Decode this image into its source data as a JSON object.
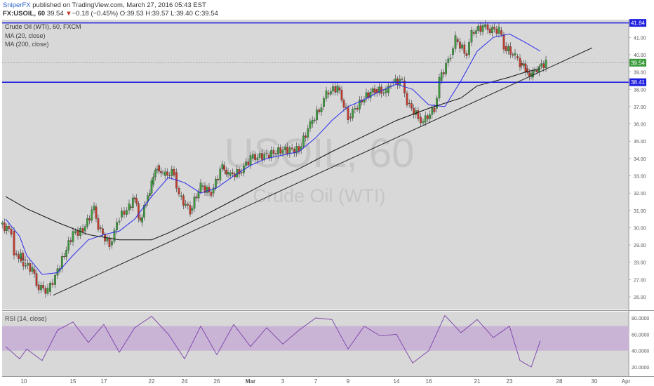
{
  "header": {
    "author": "SniperFX",
    "published_text": "published on TradingView.com, March 27, 2016 05:43 EST",
    "symbol": "FX:USOIL, 60",
    "last": "39.54",
    "change_arrow": "▼",
    "change": "−0.18 (−0.45%)",
    "ohlc": "O:39.53 H:39.57 L:39.40 C:39.54"
  },
  "main_panel": {
    "title": "Crude Oil (WTI), 60, FXCM",
    "legend": [
      "MA (20, close)",
      "MA (200, close)"
    ],
    "watermark_symbol": "USOIL, 60",
    "watermark_name": "Crude Oil (WTI)",
    "price_labels": [
      "41.00",
      "40.00",
      "39.00",
      "38.00",
      "37.00",
      "36.00",
      "35.00",
      "34.00",
      "33.00",
      "32.00",
      "31.00",
      "30.00",
      "29.00",
      "28.00",
      "27.00",
      "26.00"
    ],
    "resistance_label": "41.84",
    "current_label": "39.54",
    "support_label": "38.41"
  },
  "rsi_panel": {
    "title": "RSI (14, close)",
    "labels": [
      "80.0000",
      "60.0000",
      "40.0000",
      "20.0000"
    ]
  },
  "time_axis": [
    "10",
    "15",
    "17",
    "22",
    "24",
    "26",
    "Mar",
    "3",
    "7",
    "9",
    "14",
    "16",
    "21",
    "23",
    "28",
    "30",
    "Apr"
  ],
  "chart_data": {
    "type": "line",
    "symbol": "FX:USOIL",
    "interval": "60",
    "price_axis": {
      "ylim": [
        25.6,
        42.3
      ]
    },
    "rsi_axis": {
      "ylim": [
        14,
        86
      ]
    },
    "horizontal_lines": [
      41.84,
      38.41
    ],
    "last_price": 39.54,
    "trendline": [
      {
        "x": "Feb 11",
        "y": 26.1
      },
      {
        "x": "Mar 29",
        "y": 40.4
      }
    ],
    "price_path": [
      {
        "x": "Feb 8",
        "y": 30.2
      },
      {
        "x": "Feb 8",
        "y": 29.8
      },
      {
        "x": "Feb 9",
        "y": 28.5
      },
      {
        "x": "Feb 9",
        "y": 28.2
      },
      {
        "x": "Feb 10",
        "y": 28.0
      },
      {
        "x": "Feb 10",
        "y": 27.6
      },
      {
        "x": "Feb 11",
        "y": 26.7
      },
      {
        "x": "Feb 11",
        "y": 26.3
      },
      {
        "x": "Feb 12",
        "y": 27.5
      },
      {
        "x": "Feb 15",
        "y": 29.7
      },
      {
        "x": "Feb 16",
        "y": 29.8
      },
      {
        "x": "Feb 16",
        "y": 31.2
      },
      {
        "x": "Feb 17",
        "y": 30.0
      },
      {
        "x": "Feb 17",
        "y": 29.0
      },
      {
        "x": "Feb 18",
        "y": 30.6
      },
      {
        "x": "Feb 19",
        "y": 31.2
      },
      {
        "x": "Feb 19",
        "y": 31.7
      },
      {
        "x": "Feb 19",
        "y": 30.3
      },
      {
        "x": "Feb 22",
        "y": 31.5
      },
      {
        "x": "Feb 22",
        "y": 32.5
      },
      {
        "x": "Feb 22",
        "y": 33.6
      },
      {
        "x": "Feb 23",
        "y": 33.0
      },
      {
        "x": "Feb 23",
        "y": 33.2
      },
      {
        "x": "Feb 24",
        "y": 31.8
      },
      {
        "x": "Feb 24",
        "y": 31.0
      },
      {
        "x": "Feb 25",
        "y": 32.4
      },
      {
        "x": "Feb 26",
        "y": 32.0
      },
      {
        "x": "Feb 26",
        "y": 33.6
      },
      {
        "x": "Feb 29",
        "y": 33.0
      },
      {
        "x": "Feb 29",
        "y": 33.2
      },
      {
        "x": "Mar 1",
        "y": 34.0
      },
      {
        "x": "Mar 2",
        "y": 34.2
      },
      {
        "x": "Mar 3",
        "y": 34.5
      },
      {
        "x": "Mar 4",
        "y": 34.5
      },
      {
        "x": "Mar 7",
        "y": 36.0
      },
      {
        "x": "Mar 7",
        "y": 37.0
      },
      {
        "x": "Mar 8",
        "y": 37.8
      },
      {
        "x": "Mar 8",
        "y": 38.1
      },
      {
        "x": "Mar 9",
        "y": 36.4
      },
      {
        "x": "Mar 10",
        "y": 37.5
      },
      {
        "x": "Mar 11",
        "y": 38.0
      },
      {
        "x": "Mar 11",
        "y": 37.8
      },
      {
        "x": "Mar 14",
        "y": 38.4
      },
      {
        "x": "Mar 14",
        "y": 38.5
      },
      {
        "x": "Mar 15",
        "y": 37.2
      },
      {
        "x": "Mar 15",
        "y": 36.4
      },
      {
        "x": "Mar 16",
        "y": 36.1
      },
      {
        "x": "Mar 16",
        "y": 36.9
      },
      {
        "x": "Mar 17",
        "y": 38.5
      },
      {
        "x": "Mar 17",
        "y": 40.0
      },
      {
        "x": "Mar 18",
        "y": 40.9
      },
      {
        "x": "Mar 18",
        "y": 40.0
      },
      {
        "x": "Mar 21",
        "y": 41.3
      },
      {
        "x": "Mar 21",
        "y": 41.6
      },
      {
        "x": "Mar 22",
        "y": 41.5
      },
      {
        "x": "Mar 22",
        "y": 41.4
      },
      {
        "x": "Mar 23",
        "y": 40.5
      },
      {
        "x": "Mar 23",
        "y": 39.9
      },
      {
        "x": "Mar 24",
        "y": 39.5
      },
      {
        "x": "Mar 24",
        "y": 39.2
      },
      {
        "x": "Mar 24",
        "y": 38.7
      },
      {
        "x": "Mar 25",
        "y": 39.1
      },
      {
        "x": "Mar 25",
        "y": 39.54
      }
    ],
    "series": [
      {
        "name": "MA (20, close)",
        "color": "#2a2aee",
        "values": [
          {
            "x": "Feb 8",
            "y": 30.5
          },
          {
            "x": "Feb 9",
            "y": 29.5
          },
          {
            "x": "Feb 10",
            "y": 28.4
          },
          {
            "x": "Feb 11",
            "y": 27.3
          },
          {
            "x": "Feb 12",
            "y": 27.4
          },
          {
            "x": "Feb 15",
            "y": 28.4
          },
          {
            "x": "Feb 16",
            "y": 29.3
          },
          {
            "x": "Feb 17",
            "y": 29.6
          },
          {
            "x": "Feb 18",
            "y": 29.8
          },
          {
            "x": "Feb 19",
            "y": 30.5
          },
          {
            "x": "Feb 22",
            "y": 31.8
          },
          {
            "x": "Feb 23",
            "y": 32.9
          },
          {
            "x": "Feb 24",
            "y": 32.6
          },
          {
            "x": "Feb 25",
            "y": 32.0
          },
          {
            "x": "Feb 26",
            "y": 32.3
          },
          {
            "x": "Feb 29",
            "y": 33.0
          },
          {
            "x": "Mar 1",
            "y": 33.6
          },
          {
            "x": "Mar 2",
            "y": 34.0
          },
          {
            "x": "Mar 4",
            "y": 34.4
          },
          {
            "x": "Mar 7",
            "y": 35.2
          },
          {
            "x": "Mar 8",
            "y": 36.2
          },
          {
            "x": "Mar 9",
            "y": 37.0
          },
          {
            "x": "Mar 10",
            "y": 37.4
          },
          {
            "x": "Mar 11",
            "y": 37.9
          },
          {
            "x": "Mar 14",
            "y": 38.3
          },
          {
            "x": "Mar 15",
            "y": 38.0
          },
          {
            "x": "Mar 16",
            "y": 37.1
          },
          {
            "x": "Mar 17",
            "y": 37.0
          },
          {
            "x": "Mar 18",
            "y": 38.5
          },
          {
            "x": "Mar 21",
            "y": 40.2
          },
          {
            "x": "Mar 22",
            "y": 41.0
          },
          {
            "x": "Mar 23",
            "y": 41.2
          },
          {
            "x": "Mar 24",
            "y": 40.7
          },
          {
            "x": "Mar 25",
            "y": 40.2
          }
        ]
      },
      {
        "name": "MA (200, close)",
        "color": "#111111",
        "values": [
          {
            "x": "Feb 8",
            "y": 31.8
          },
          {
            "x": "Feb 10",
            "y": 31.1
          },
          {
            "x": "Feb 12",
            "y": 30.3
          },
          {
            "x": "Feb 16",
            "y": 29.6
          },
          {
            "x": "Feb 18",
            "y": 29.3
          },
          {
            "x": "Feb 22",
            "y": 29.3
          },
          {
            "x": "Feb 23",
            "y": 29.7
          },
          {
            "x": "Feb 25",
            "y": 30.6
          },
          {
            "x": "Feb 29",
            "y": 31.6
          },
          {
            "x": "Mar 2",
            "y": 32.6
          },
          {
            "x": "Mar 4",
            "y": 33.4
          },
          {
            "x": "Mar 8",
            "y": 34.4
          },
          {
            "x": "Mar 10",
            "y": 35.3
          },
          {
            "x": "Mar 14",
            "y": 36.2
          },
          {
            "x": "Mar 16",
            "y": 36.9
          },
          {
            "x": "Mar 18",
            "y": 37.5
          },
          {
            "x": "Mar 21",
            "y": 38.2
          },
          {
            "x": "Mar 23",
            "y": 38.7
          },
          {
            "x": "Mar 24",
            "y": 39.0
          },
          {
            "x": "Mar 25",
            "y": 39.2
          }
        ]
      },
      {
        "name": "RSI (14, close)",
        "color": "#7b3fa8",
        "values": [
          {
            "x": "Feb 8",
            "y": 45
          },
          {
            "x": "Feb 9",
            "y": 30
          },
          {
            "x": "Feb 10",
            "y": 42
          },
          {
            "x": "Feb 11",
            "y": 28
          },
          {
            "x": "Feb 12",
            "y": 65
          },
          {
            "x": "Feb 15",
            "y": 75
          },
          {
            "x": "Feb 16",
            "y": 50
          },
          {
            "x": "Feb 17",
            "y": 72
          },
          {
            "x": "Feb 18",
            "y": 38
          },
          {
            "x": "Feb 19",
            "y": 68
          },
          {
            "x": "Feb 22",
            "y": 82
          },
          {
            "x": "Feb 23",
            "y": 60
          },
          {
            "x": "Feb 24",
            "y": 30
          },
          {
            "x": "Feb 25",
            "y": 70
          },
          {
            "x": "Feb 26",
            "y": 35
          },
          {
            "x": "Feb 29",
            "y": 72
          },
          {
            "x": "Mar 1",
            "y": 45
          },
          {
            "x": "Mar 2",
            "y": 68
          },
          {
            "x": "Mar 3",
            "y": 48
          },
          {
            "x": "Mar 4",
            "y": 65
          },
          {
            "x": "Mar 7",
            "y": 80
          },
          {
            "x": "Mar 8",
            "y": 78
          },
          {
            "x": "Mar 9",
            "y": 42
          },
          {
            "x": "Mar 10",
            "y": 70
          },
          {
            "x": "Mar 11",
            "y": 58
          },
          {
            "x": "Mar 14",
            "y": 60
          },
          {
            "x": "Mar 15",
            "y": 25
          },
          {
            "x": "Mar 16",
            "y": 40
          },
          {
            "x": "Mar 17",
            "y": 83
          },
          {
            "x": "Mar 18",
            "y": 62
          },
          {
            "x": "Mar 21",
            "y": 78
          },
          {
            "x": "Mar 22",
            "y": 56
          },
          {
            "x": "Mar 23",
            "y": 70
          },
          {
            "x": "Mar 24",
            "y": 28
          },
          {
            "x": "Mar 24",
            "y": 20
          },
          {
            "x": "Mar 25",
            "y": 52
          }
        ]
      }
    ],
    "rsi_band": [
      40,
      70
    ]
  }
}
